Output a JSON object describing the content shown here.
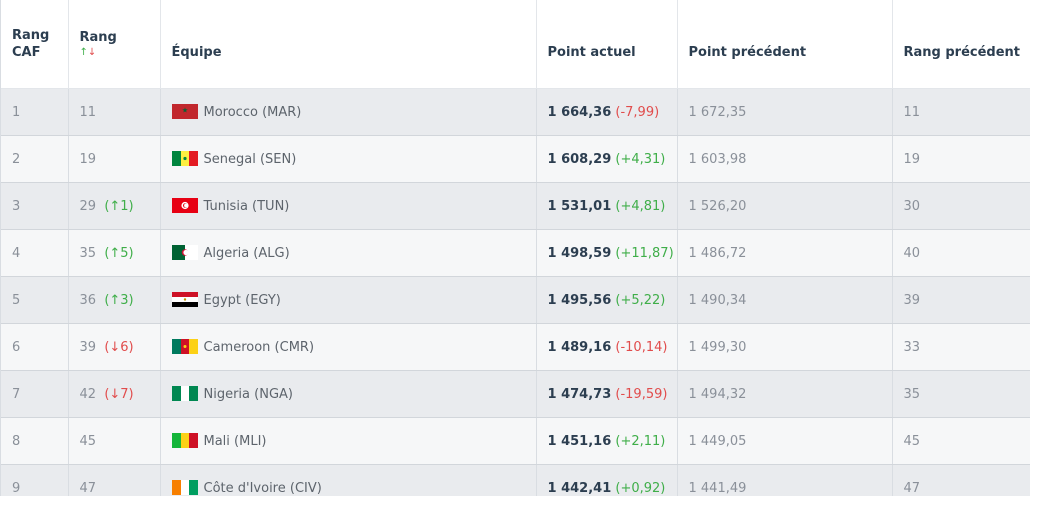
{
  "headers": {
    "rang_caf": [
      "Rang",
      "CAF"
    ],
    "rang": "Rang",
    "rang_arrows": {
      "up": "↑",
      "down": "↓"
    },
    "equipe": "Équipe",
    "point_actuel": "Point actuel",
    "point_precedent": "Point précédent",
    "rang_precedent": "Rang précédent"
  },
  "rows": [
    {
      "caf": "1",
      "rang": "11",
      "change": "",
      "dir": "",
      "team": "Morocco (MAR)",
      "flag": "morocco-flag-icon",
      "points": "1 664,36",
      "points_change": "(-7,99)",
      "pdir": "down",
      "prev_points": "1 672,35",
      "prev_rank": "11"
    },
    {
      "caf": "2",
      "rang": "19",
      "change": "",
      "dir": "",
      "team": "Senegal (SEN)",
      "flag": "senegal-flag-icon",
      "points": "1 608,29",
      "points_change": "(+4,31)",
      "pdir": "up",
      "prev_points": "1 603,98",
      "prev_rank": "19"
    },
    {
      "caf": "3",
      "rang": "29",
      "change": "(↑1)",
      "dir": "up",
      "team": "Tunisia (TUN)",
      "flag": "tunisia-flag-icon",
      "points": "1 531,01",
      "points_change": "(+4,81)",
      "pdir": "up",
      "prev_points": "1 526,20",
      "prev_rank": "30"
    },
    {
      "caf": "4",
      "rang": "35",
      "change": "(↑5)",
      "dir": "up",
      "team": "Algeria (ALG)",
      "flag": "algeria-flag-icon",
      "points": "1 498,59",
      "points_change": "(+11,87)",
      "pdir": "up",
      "prev_points": "1 486,72",
      "prev_rank": "40"
    },
    {
      "caf": "5",
      "rang": "36",
      "change": "(↑3)",
      "dir": "up",
      "team": "Egypt (EGY)",
      "flag": "egypt-flag-icon",
      "points": "1 495,56",
      "points_change": "(+5,22)",
      "pdir": "up",
      "prev_points": "1 490,34",
      "prev_rank": "39"
    },
    {
      "caf": "6",
      "rang": "39",
      "change": "(↓6)",
      "dir": "down",
      "team": "Cameroon (CMR)",
      "flag": "cameroon-flag-icon",
      "points": "1 489,16",
      "points_change": "(-10,14)",
      "pdir": "down",
      "prev_points": "1 499,30",
      "prev_rank": "33"
    },
    {
      "caf": "7",
      "rang": "42",
      "change": "(↓7)",
      "dir": "down",
      "team": "Nigeria (NGA)",
      "flag": "nigeria-flag-icon",
      "points": "1 474,73",
      "points_change": "(-19,59)",
      "pdir": "down",
      "prev_points": "1 494,32",
      "prev_rank": "35"
    },
    {
      "caf": "8",
      "rang": "45",
      "change": "",
      "dir": "",
      "team": "Mali (MLI)",
      "flag": "mali-flag-icon",
      "points": "1 451,16",
      "points_change": "(+2,11)",
      "pdir": "up",
      "prev_points": "1 449,05",
      "prev_rank": "45"
    },
    {
      "caf": "9",
      "rang": "47",
      "change": "",
      "dir": "",
      "team": "Côte d'Ivoire (CIV)",
      "flag": "cote-divoire-flag-icon",
      "points": "1 442,41",
      "points_change": "(+0,92)",
      "pdir": "up",
      "prev_points": "1 441,49",
      "prev_rank": "47"
    }
  ]
}
